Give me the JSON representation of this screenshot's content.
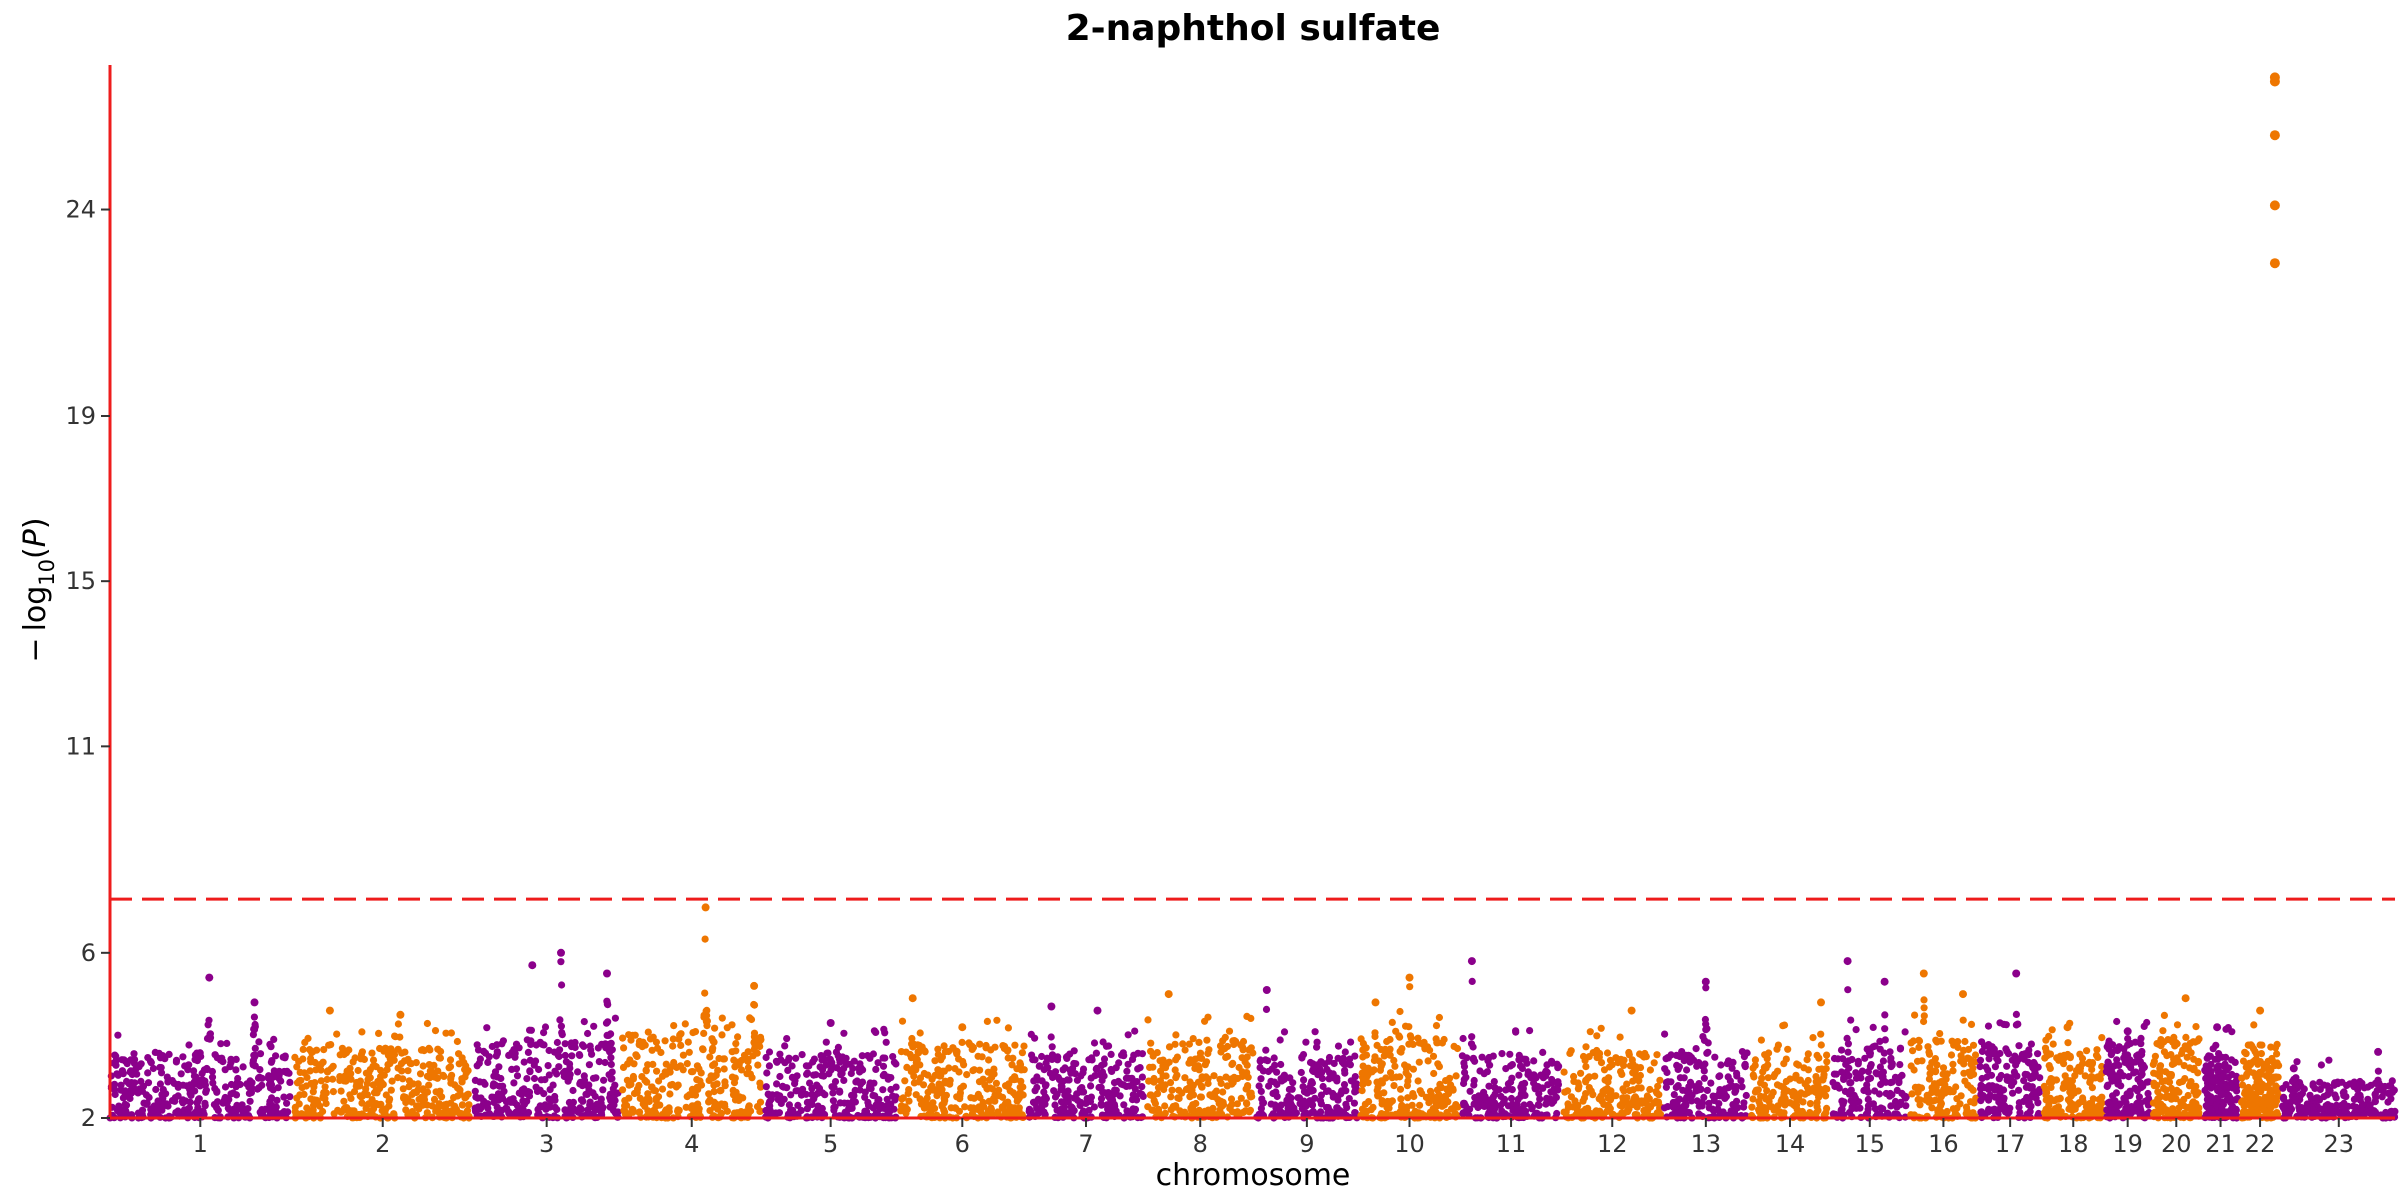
{
  "chart_data": {
    "type": "scatter",
    "title": "2-naphthol sulfate",
    "xlabel": "chromosome",
    "ylabel": "−log10(P)",
    "ylabel_parts": {
      "minus": "−",
      "log": "log",
      "sub": "10",
      "paren_open": "(",
      "var": "P",
      "paren_close": ")"
    },
    "ylim": [
      2,
      27.5
    ],
    "yticks": [
      "2",
      "6",
      "11",
      "15",
      "19",
      "24"
    ],
    "ytick_values": [
      2,
      6,
      11,
      15,
      19,
      24
    ],
    "significance_threshold": 7.3,
    "grid": false,
    "colors": {
      "odd": "#8B008B",
      "even": "#EE7600",
      "axis": "#ee1c1c",
      "threshold": "#ee1c1c"
    },
    "chromosomes": [
      {
        "label": "1",
        "size": 249,
        "base": 3.3,
        "peaks": [
          [
            0.55,
            5.4
          ],
          [
            0.8,
            4.8
          ]
        ]
      },
      {
        "label": "2",
        "size": 243,
        "base": 3.4,
        "peaks": [
          [
            0.2,
            4.6
          ],
          [
            0.6,
            4.5
          ]
        ]
      },
      {
        "label": "3",
        "size": 198,
        "base": 3.6,
        "peaks": [
          [
            0.4,
            5.7
          ],
          [
            0.6,
            6.0
          ],
          [
            0.92,
            5.5
          ]
        ]
      },
      {
        "label": "4",
        "size": 191,
        "base": 3.8,
        "peaks": [
          [
            0.6,
            7.1
          ],
          [
            0.95,
            5.2
          ]
        ]
      },
      {
        "label": "5",
        "size": 181,
        "base": 3.3,
        "peaks": [
          [
            0.5,
            4.3
          ]
        ]
      },
      {
        "label": "6",
        "size": 171,
        "base": 3.5,
        "peaks": [
          [
            0.1,
            4.9
          ],
          [
            0.5,
            4.2
          ]
        ]
      },
      {
        "label": "7",
        "size": 159,
        "base": 3.3,
        "peaks": [
          [
            0.2,
            4.7
          ],
          [
            0.6,
            4.6
          ]
        ]
      },
      {
        "label": "8",
        "size": 145,
        "base": 3.6,
        "peaks": [
          [
            0.2,
            5.0
          ]
        ]
      },
      {
        "label": "9",
        "size": 138,
        "base": 3.2,
        "peaks": [
          [
            0.1,
            5.1
          ]
        ]
      },
      {
        "label": "10",
        "size": 134,
        "base": 3.7,
        "peaks": [
          [
            0.5,
            5.4
          ],
          [
            0.15,
            4.8
          ]
        ]
      },
      {
        "label": "11",
        "size": 135,
        "base": 3.3,
        "peaks": [
          [
            0.1,
            5.8
          ]
        ]
      },
      {
        "label": "12",
        "size": 133,
        "base": 3.4,
        "peaks": [
          [
            0.7,
            4.6
          ]
        ]
      },
      {
        "label": "13",
        "size": 114,
        "base": 3.3,
        "peaks": [
          [
            0.5,
            5.3
          ]
        ]
      },
      {
        "label": "14",
        "size": 107,
        "base": 3.4,
        "peaks": [
          [
            0.9,
            4.8
          ]
        ]
      },
      {
        "label": "15",
        "size": 102,
        "base": 3.5,
        "peaks": [
          [
            0.2,
            5.8
          ],
          [
            0.7,
            5.3
          ]
        ]
      },
      {
        "label": "16",
        "size": 90,
        "base": 3.6,
        "peaks": [
          [
            0.2,
            5.5
          ],
          [
            0.8,
            5.0
          ]
        ]
      },
      {
        "label": "17",
        "size": 83,
        "base": 3.5,
        "peaks": [
          [
            0.6,
            5.5
          ]
        ]
      },
      {
        "label": "18",
        "size": 80,
        "base": 3.4,
        "peaks": [
          [
            0.4,
            4.2
          ]
        ]
      },
      {
        "label": "19",
        "size": 59,
        "base": 3.5,
        "peaks": [
          [
            0.5,
            4.1
          ]
        ]
      },
      {
        "label": "20",
        "size": 64,
        "base": 3.6,
        "peaks": [
          [
            0.7,
            4.9
          ]
        ]
      },
      {
        "label": "21",
        "size": 47,
        "base": 3.3,
        "peaks": [
          [
            0.4,
            4.2
          ]
        ]
      },
      {
        "label": "22",
        "size": 51,
        "base": 3.5,
        "peaks": [
          [
            0.5,
            4.6
          ]
        ]
      },
      {
        "label": "23",
        "size": 155,
        "base": 2.6,
        "peaks": [
          [
            0.1,
            3.2
          ],
          [
            0.85,
            3.6
          ]
        ]
      }
    ],
    "top_hits": [
      {
        "chromosome": "22",
        "pos": 0.9,
        "y": 27.2
      },
      {
        "chromosome": "22",
        "pos": 0.9,
        "y": 27.1
      },
      {
        "chromosome": "22",
        "pos": 0.9,
        "y": 25.8
      },
      {
        "chromosome": "22",
        "pos": 0.9,
        "y": 24.1
      },
      {
        "chromosome": "22",
        "pos": 0.9,
        "y": 22.7
      }
    ]
  }
}
